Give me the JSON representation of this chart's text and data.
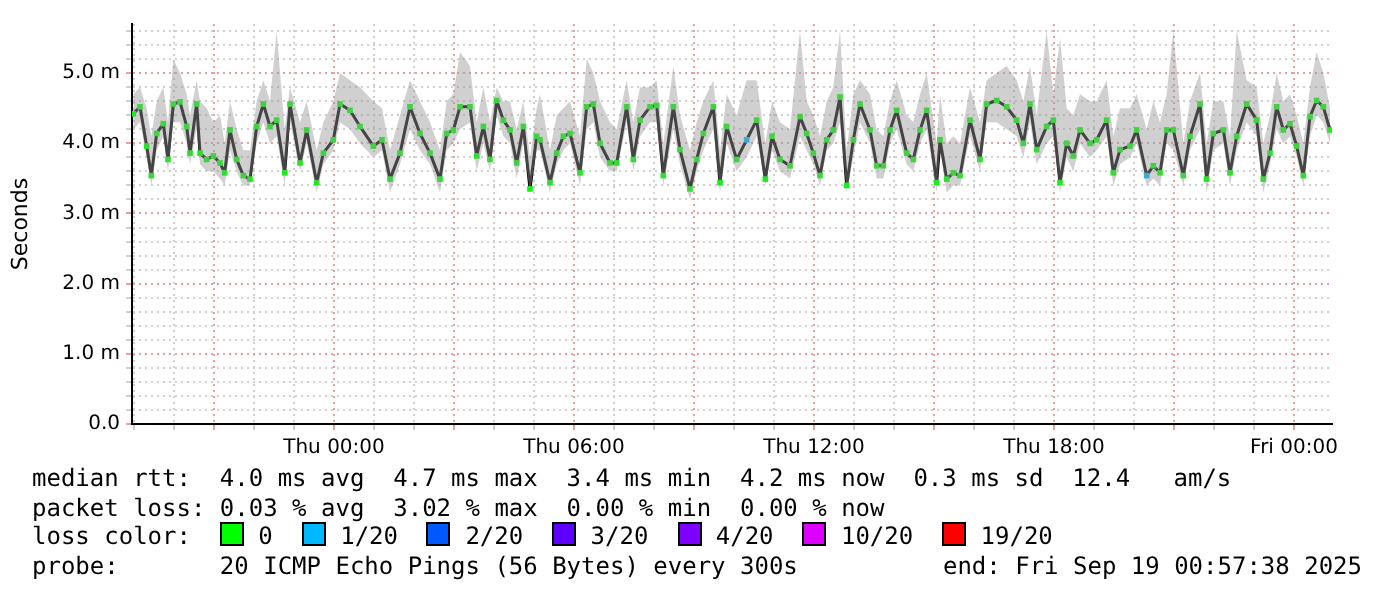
{
  "chart_data": {
    "type": "line",
    "ylabel": "Seconds",
    "grid": true,
    "marker": "square",
    "line_style": "solid",
    "xlim": [
      "2025-09-17T18:57",
      "2025-09-19T00:57"
    ],
    "xticks": [
      {
        "value": "2025-09-17T19:00",
        "label": null
      },
      {
        "value": "2025-09-17T20:00",
        "label": null
      },
      {
        "value": "2025-09-17T21:00",
        "label": null
      },
      {
        "value": "2025-09-17T22:00",
        "label": null
      },
      {
        "value": "2025-09-17T23:00",
        "label": null
      },
      {
        "value": "2025-09-18T00:00",
        "label": "Thu 00:00"
      },
      {
        "value": "2025-09-18T01:00",
        "label": null
      },
      {
        "value": "2025-09-18T02:00",
        "label": null
      },
      {
        "value": "2025-09-18T03:00",
        "label": null
      },
      {
        "value": "2025-09-18T04:00",
        "label": null
      },
      {
        "value": "2025-09-18T05:00",
        "label": null
      },
      {
        "value": "2025-09-18T06:00",
        "label": "Thu 06:00"
      },
      {
        "value": "2025-09-18T07:00",
        "label": null
      },
      {
        "value": "2025-09-18T08:00",
        "label": null
      },
      {
        "value": "2025-09-18T09:00",
        "label": null
      },
      {
        "value": "2025-09-18T10:00",
        "label": null
      },
      {
        "value": "2025-09-18T11:00",
        "label": null
      },
      {
        "value": "2025-09-18T12:00",
        "label": "Thu 12:00"
      },
      {
        "value": "2025-09-18T13:00",
        "label": null
      },
      {
        "value": "2025-09-18T14:00",
        "label": null
      },
      {
        "value": "2025-09-18T15:00",
        "label": null
      },
      {
        "value": "2025-09-18T16:00",
        "label": null
      },
      {
        "value": "2025-09-18T17:00",
        "label": null
      },
      {
        "value": "2025-09-18T18:00",
        "label": "Thu 18:00"
      },
      {
        "value": "2025-09-18T19:00",
        "label": null
      },
      {
        "value": "2025-09-18T20:00",
        "label": null
      },
      {
        "value": "2025-09-18T21:00",
        "label": null
      },
      {
        "value": "2025-09-18T22:00",
        "label": null
      },
      {
        "value": "2025-09-18T23:00",
        "label": null
      },
      {
        "value": "2025-09-19T00:00",
        "label": "Fri 00:00"
      }
    ],
    "ylim": [
      0,
      5.7
    ],
    "yticks": [
      {
        "value": 0,
        "label": "0.0"
      },
      {
        "value": 0.2,
        "label": null
      },
      {
        "value": 0.4,
        "label": null
      },
      {
        "value": 0.6,
        "label": null
      },
      {
        "value": 0.8,
        "label": null
      },
      {
        "value": 1,
        "label": "1.0 m"
      },
      {
        "value": 1.2,
        "label": null
      },
      {
        "value": 1.4,
        "label": null
      },
      {
        "value": 1.6,
        "label": null
      },
      {
        "value": 1.8,
        "label": null
      },
      {
        "value": 2,
        "label": "2.0 m"
      },
      {
        "value": 2.2,
        "label": null
      },
      {
        "value": 2.4,
        "label": null
      },
      {
        "value": 2.6,
        "label": null
      },
      {
        "value": 2.8,
        "label": null
      },
      {
        "value": 3,
        "label": "3.0 m"
      },
      {
        "value": 3.2,
        "label": null
      },
      {
        "value": 3.4,
        "label": null
      },
      {
        "value": 3.6,
        "label": null
      },
      {
        "value": 3.8,
        "label": null
      },
      {
        "value": 4,
        "label": "4.0 m"
      },
      {
        "value": 4.2,
        "label": null
      },
      {
        "value": 4.4,
        "label": null
      },
      {
        "value": 4.6,
        "label": null
      },
      {
        "value": 4.8,
        "label": null
      },
      {
        "value": 5,
        "label": "5.0 m"
      },
      {
        "value": 5.2,
        "label": null
      },
      {
        "value": 5.4,
        "label": null
      },
      {
        "value": 5.6,
        "label": null
      }
    ],
    "annotations": [
      "median rtt:  4.0 ms avg  4.7 ms max  3.4 ms min  4.2 ms now  0.3 ms sd  12.4   am/s",
      "packet loss: 0.03 % avg  3.02 % max  0.00 % min  0.00 % now",
      "loss color:",
      "0",
      "1/20",
      "2/20",
      "3/20",
      "4/20",
      "10/20",
      "19/20",
      "probe:       20 ICMP Echo Pings (56 Bytes) every 300s",
      "end: Fri Sep 19 00:57:38 2025"
    ],
    "x": [
      "2025-09-17T18:59",
      "2025-09-17T19:09",
      "2025-09-17T19:19",
      "2025-09-17T19:26",
      "2025-09-17T19:34",
      "2025-09-17T19:44",
      "2025-09-17T19:51",
      "2025-09-17T19:59",
      "2025-09-17T20:09",
      "2025-09-17T20:19",
      "2025-09-17T20:24",
      "2025-09-17T20:34",
      "2025-09-17T20:39",
      "2025-09-17T20:49",
      "2025-09-17T20:59",
      "2025-09-17T21:09",
      "2025-09-17T21:16",
      "2025-09-17T21:24",
      "2025-09-17T21:34",
      "2025-09-17T21:44",
      "2025-09-17T21:54",
      "2025-09-17T22:04",
      "2025-09-17T22:14",
      "2025-09-17T22:24",
      "2025-09-17T22:34",
      "2025-09-17T22:46",
      "2025-09-17T22:54",
      "2025-09-17T23:09",
      "2025-09-17T23:19",
      "2025-09-17T23:34",
      "2025-09-17T23:44",
      "2025-09-17T23:59",
      "2025-09-18T00:09",
      "2025-09-18T00:24",
      "2025-09-18T00:39",
      "2025-09-18T00:59",
      "2025-09-18T01:12",
      "2025-09-18T01:24",
      "2025-09-18T01:39",
      "2025-09-18T01:54",
      "2025-09-18T02:09",
      "2025-09-18T02:24",
      "2025-09-18T02:39",
      "2025-09-18T02:49",
      "2025-09-18T02:59",
      "2025-09-18T03:09",
      "2025-09-18T03:24",
      "2025-09-18T03:34",
      "2025-09-18T03:44",
      "2025-09-18T03:54",
      "2025-09-18T04:04",
      "2025-09-18T04:14",
      "2025-09-18T04:24",
      "2025-09-18T04:34",
      "2025-09-18T04:44",
      "2025-09-18T04:54",
      "2025-09-18T05:04",
      "2025-09-18T05:09",
      "2025-09-18T05:24",
      "2025-09-18T05:34",
      "2025-09-18T05:44",
      "2025-09-18T05:54",
      "2025-09-18T06:09",
      "2025-09-18T06:19",
      "2025-09-18T06:29",
      "2025-09-18T06:39",
      "2025-09-18T06:54",
      "2025-09-18T07:04",
      "2025-09-18T07:19",
      "2025-09-18T07:29",
      "2025-09-18T07:39",
      "2025-09-18T07:54",
      "2025-09-18T08:04",
      "2025-09-18T08:14",
      "2025-09-18T08:29",
      "2025-09-18T08:39",
      "2025-09-18T08:54",
      "2025-09-18T09:04",
      "2025-09-18T09:14",
      "2025-09-18T09:29",
      "2025-09-18T09:39",
      "2025-09-18T09:49",
      "2025-09-18T10:04",
      "2025-09-18T10:19",
      "2025-09-18T10:34",
      "2025-09-18T10:47",
      "2025-09-18T10:57",
      "2025-09-18T11:09",
      "2025-09-18T11:24",
      "2025-09-18T11:39",
      "2025-09-18T11:49",
      "2025-09-18T11:59",
      "2025-09-18T12:09",
      "2025-09-18T12:19",
      "2025-09-18T12:29",
      "2025-09-18T12:39",
      "2025-09-18T12:49",
      "2025-09-18T12:59",
      "2025-09-18T13:09",
      "2025-09-18T13:24",
      "2025-09-18T13:34",
      "2025-09-18T13:44",
      "2025-09-18T13:54",
      "2025-09-18T14:04",
      "2025-09-18T14:19",
      "2025-09-18T14:29",
      "2025-09-18T14:39",
      "2025-09-18T14:49",
      "2025-09-18T15:04",
      "2025-09-18T15:09",
      "2025-09-18T15:19",
      "2025-09-18T15:29",
      "2025-09-18T15:39",
      "2025-09-18T15:54",
      "2025-09-18T16:09",
      "2025-09-18T16:19",
      "2025-09-18T16:34",
      "2025-09-18T16:49",
      "2025-09-18T17:04",
      "2025-09-18T17:14",
      "2025-09-18T17:24",
      "2025-09-18T17:34",
      "2025-09-18T17:49",
      "2025-09-18T17:59",
      "2025-09-18T18:09",
      "2025-09-18T18:19",
      "2025-09-18T18:29",
      "2025-09-18T18:39",
      "2025-09-18T18:54",
      "2025-09-18T19:04",
      "2025-09-18T19:19",
      "2025-09-18T19:29",
      "2025-09-18T19:39",
      "2025-09-18T19:54",
      "2025-09-18T20:04",
      "2025-09-18T20:19",
      "2025-09-18T20:29",
      "2025-09-18T20:39",
      "2025-09-18T20:49",
      "2025-09-18T20:59",
      "2025-09-18T21:14",
      "2025-09-18T21:24",
      "2025-09-18T21:39",
      "2025-09-18T21:49",
      "2025-09-18T21:59",
      "2025-09-18T22:14",
      "2025-09-18T22:24",
      "2025-09-18T22:34",
      "2025-09-18T22:49",
      "2025-09-18T23:04",
      "2025-09-18T23:14",
      "2025-09-18T23:24",
      "2025-09-18T23:34",
      "2025-09-18T23:44",
      "2025-09-18T23:54",
      "2025-09-19T00:04",
      "2025-09-19T00:14",
      "2025-09-19T00:24",
      "2025-09-19T00:34",
      "2025-09-19T00:44",
      "2025-09-19T00:54"
    ],
    "series": [
      {
        "color": "#000000",
        "values": [
          4.42,
          4.52,
          3.96,
          3.54,
          4.14,
          4.28,
          3.77,
          4.56,
          4.59,
          4.24,
          3.86,
          4.56,
          3.86,
          3.77,
          3.82,
          3.72,
          3.58,
          4.19,
          3.77,
          3.54,
          3.49,
          4.24,
          4.56,
          4.24,
          4.33,
          3.58,
          4.56,
          3.72,
          4.19,
          3.44,
          3.86,
          4.05,
          4.56,
          4.47,
          4.24,
          3.96,
          4.05,
          3.49,
          3.86,
          4.52,
          4.14,
          3.86,
          3.49,
          4.14,
          4.19,
          4.52,
          4.52,
          3.82,
          4.24,
          3.77,
          4.61,
          4.33,
          4.19,
          3.72,
          4.24,
          3.35,
          4.1,
          4.05,
          3.44,
          3.86,
          4.1,
          4.14,
          3.58,
          4.52,
          4.56,
          4,
          3.72,
          3.72,
          4.52,
          3.77,
          4.33,
          4.52,
          4.54,
          3.54,
          4.52,
          3.91,
          3.35,
          3.77,
          4.14,
          4.52,
          3.44,
          4.24,
          3.77,
          4.05,
          4.33,
          3.49,
          4.1,
          3.77,
          3.68,
          4.38,
          4.14,
          3.86,
          3.54,
          4.05,
          4.19,
          4.66,
          3.4,
          4.05,
          4.56,
          4.19,
          3.68,
          3.68,
          4.19,
          4.47,
          3.86,
          3.77,
          4.19,
          4.47,
          3.44,
          4.05,
          3.49,
          3.58,
          3.54,
          4.33,
          3.77,
          4.56,
          4.61,
          4.52,
          4.33,
          4,
          4.56,
          3.91,
          4.24,
          4.33,
          3.44,
          4,
          3.82,
          4.19,
          4,
          4.05,
          4.33,
          3.58,
          3.91,
          3.96,
          4.19,
          3.54,
          3.68,
          3.58,
          4.19,
          4.19,
          3.54,
          4.1,
          4.56,
          3.49,
          4.14,
          4.19,
          3.58,
          4.1,
          4.56,
          4.33,
          3.49,
          3.86,
          4.52,
          4.19,
          4.28,
          3.96,
          3.54,
          4.38,
          4.61,
          4.52,
          4.19
        ],
        "lower": [
          4.2,
          4.3,
          3.8,
          3.4,
          3.9,
          4.1,
          3.6,
          4.3,
          4.3,
          4,
          3.7,
          4.2,
          3.7,
          3.6,
          3.6,
          3.5,
          3.4,
          3.9,
          3.6,
          3.4,
          3.4,
          4,
          4.3,
          4,
          4.1,
          3.4,
          4.3,
          3.6,
          4,
          3.3,
          3.7,
          3.9,
          4.3,
          4.2,
          4,
          3.8,
          3.9,
          3.3,
          3.7,
          4.2,
          3.9,
          3.7,
          3.3,
          3.9,
          4,
          4.2,
          4.3,
          3.6,
          4,
          3.6,
          4.4,
          4.1,
          4,
          3.5,
          4,
          3.3,
          3.9,
          3.9,
          3.3,
          3.7,
          3.9,
          4,
          3.4,
          4.2,
          4.3,
          3.8,
          3.6,
          3.6,
          4.3,
          3.6,
          4.1,
          4.3,
          4.3,
          3.4,
          4.2,
          3.7,
          3.2,
          3.6,
          3.9,
          4.2,
          3.3,
          4,
          3.6,
          3.8,
          4.1,
          3.4,
          3.9,
          3.6,
          3.5,
          4.1,
          3.9,
          3.7,
          3.4,
          3.9,
          4,
          4.3,
          3.3,
          3.8,
          4.3,
          4,
          3.5,
          3.5,
          4,
          4.2,
          3.7,
          3.6,
          4,
          4.2,
          3.3,
          3.9,
          3.3,
          3.4,
          3.4,
          4.1,
          3.6,
          4.3,
          4.3,
          4.2,
          4.1,
          3.8,
          4.3,
          3.7,
          4,
          4.1,
          3.3,
          3.8,
          3.6,
          4,
          3.8,
          3.9,
          4.1,
          3.4,
          3.7,
          3.8,
          4,
          3.4,
          3.5,
          3.4,
          4,
          3.9,
          3.4,
          3.9,
          4.2,
          3.3,
          3.9,
          4,
          3.4,
          3.9,
          4.3,
          4.1,
          3.3,
          3.7,
          4.2,
          4,
          4.1,
          3.8,
          3.4,
          4.1,
          4.4,
          4.3,
          4
        ],
        "upper": [
          4.7,
          4.8,
          4.5,
          4.1,
          4.6,
          4.8,
          4.3,
          5.2,
          5,
          4.7,
          4.4,
          4.9,
          4.6,
          4.5,
          4.3,
          4.4,
          4,
          4.6,
          4.2,
          3.9,
          3.9,
          4.6,
          4.9,
          4.6,
          5.6,
          4.2,
          4.8,
          4.3,
          4.6,
          3.9,
          4.3,
          4.6,
          5,
          4.9,
          4.8,
          4.6,
          4.5,
          3.9,
          4.4,
          4.9,
          4.6,
          4.3,
          3.9,
          4.6,
          4.7,
          5.3,
          5.1,
          4.3,
          4.8,
          4.3,
          4.8,
          4.6,
          4.6,
          4.2,
          4.6,
          3.8,
          4.5,
          4.7,
          3.9,
          4.4,
          4.5,
          4.6,
          4.1,
          5.2,
          5,
          4.6,
          4.3,
          4.2,
          4.9,
          4.3,
          4.8,
          4.8,
          4.9,
          4,
          5.1,
          4.4,
          3.9,
          4.3,
          4.6,
          4.9,
          3.9,
          4.7,
          4.4,
          4.9,
          4.9,
          4,
          4.6,
          4.3,
          4.2,
          5.6,
          4.6,
          4.4,
          4.1,
          4.6,
          4.8,
          5.6,
          3.9,
          4.7,
          4.9,
          4.7,
          4.2,
          4.1,
          4.6,
          4.9,
          4.4,
          4.3,
          4.7,
          5,
          4,
          4.7,
          4,
          4.1,
          4,
          4.8,
          4.3,
          4.9,
          5,
          5.1,
          4.9,
          4.6,
          5.1,
          4.4,
          5.6,
          4.7,
          5.5,
          4.5,
          4.4,
          4.7,
          4.6,
          4.6,
          4.9,
          4.1,
          4.5,
          4.5,
          4.7,
          4.2,
          4.6,
          4.3,
          4.7,
          5.6,
          4,
          4.6,
          5,
          4,
          4.6,
          4.6,
          4.1,
          5.6,
          4.9,
          4.8,
          4,
          4.4,
          5,
          4.6,
          4.7,
          4.4,
          4,
          4.8,
          5.3,
          5,
          4.5
        ],
        "colors": [
          "#00ff00",
          "#00ff00",
          "#00ff00",
          "#00ff00",
          "#00ff00",
          "#00ff00",
          "#00ff00",
          "#00ff00",
          "#00ff00",
          "#00ff00",
          "#00ff00",
          "#00ff00",
          "#00ff00",
          "#00ff00",
          "#00ff00",
          "#00ff00",
          "#00ff00",
          "#00ff00",
          "#00ff00",
          "#00ff00",
          "#00ff00",
          "#00ff00",
          "#00ff00",
          "#00ff00",
          "#00ff00",
          "#00ff00",
          "#00ff00",
          "#00ff00",
          "#00ff00",
          "#00ff00",
          "#00ff00",
          "#00ff00",
          "#00ff00",
          "#00ff00",
          "#00ff00",
          "#00ff00",
          "#00ff00",
          "#00ff00",
          "#00ff00",
          "#00ff00",
          "#00ff00",
          "#00ff00",
          "#00ff00",
          "#00ff00",
          "#00ff00",
          "#00ff00",
          "#00ff00",
          "#00ff00",
          "#00ff00",
          "#00ff00",
          "#00ff00",
          "#00ff00",
          "#00ff00",
          "#00ff00",
          "#00ff00",
          "#00ff00",
          "#00ff00",
          "#00ff00",
          "#00ff00",
          "#00ff00",
          "#00ff00",
          "#00ff00",
          "#00ff00",
          "#00ff00",
          "#00ff00",
          "#00ff00",
          "#00ff00",
          "#00ff00",
          "#00ff00",
          "#00ff00",
          "#00ff00",
          "#00ff00",
          "#00ff00",
          "#00ff00",
          "#00ff00",
          "#00ff00",
          "#00ff00",
          "#00ff00",
          "#00ff00",
          "#00ff00",
          "#00ff00",
          "#00ff00",
          "#00ff00",
          "#00b8ff",
          "#00ff00",
          "#00ff00",
          "#00ff00",
          "#00ff00",
          "#00ff00",
          "#00ff00",
          "#00ff00",
          "#00ff00",
          "#00ff00",
          "#00ff00",
          "#00ff00",
          "#00ff00",
          "#00ff00",
          "#00ff00",
          "#00ff00",
          "#00ff00",
          "#00ff00",
          "#00ff00",
          "#00ff00",
          "#00ff00",
          "#00ff00",
          "#00ff00",
          "#00ff00",
          "#00ff00",
          "#00ff00",
          "#00ff00",
          "#00ff00",
          "#00ff00",
          "#00ff00",
          "#00ff00",
          "#00ff00",
          "#00ff00",
          "#00ff00",
          "#00ff00",
          "#00ff00",
          "#00ff00",
          "#00ff00",
          "#00ff00",
          "#00ff00",
          "#00ff00",
          "#00ff00",
          "#00ff00",
          "#00ff00",
          "#00ff00",
          "#00ff00",
          "#00ff00",
          "#00ff00",
          "#00ff00",
          "#00ff00",
          "#00ff00",
          "#00ff00",
          "#00b8ff",
          "#00ff00",
          "#00ff00",
          "#00ff00",
          "#00ff00",
          "#00ff00",
          "#00ff00",
          "#00ff00",
          "#00ff00",
          "#00ff00",
          "#00ff00",
          "#00ff00",
          "#00ff00",
          "#00ff00",
          "#00ff00",
          "#00ff00",
          "#00ff00",
          "#00ff00",
          "#00ff00",
          "#00ff00",
          "#00ff00",
          "#00ff00",
          "#00ff00",
          "#00ff00",
          "#00ff00",
          "#00ff00"
        ]
      }
    ]
  }
}
